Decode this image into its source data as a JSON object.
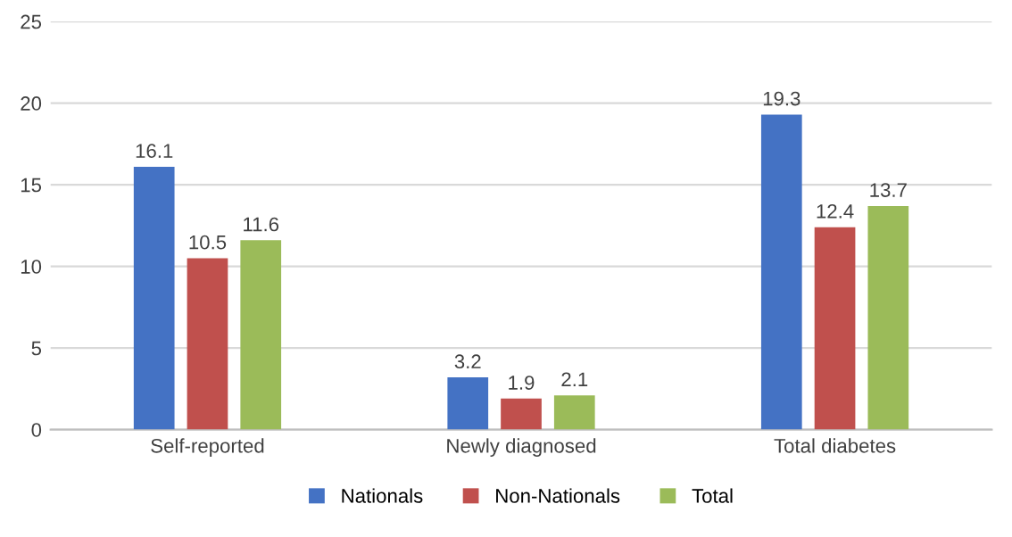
{
  "chart_data": {
    "type": "bar",
    "categories": [
      "Self-reported",
      "Newly diagnosed",
      "Total diabetes"
    ],
    "series": [
      {
        "name": "Nationals",
        "color": "#4472c4",
        "values": [
          16.1,
          3.2,
          19.3
        ]
      },
      {
        "name": "Non-Nationals",
        "color": "#c0504d",
        "values": [
          10.5,
          1.9,
          12.4
        ]
      },
      {
        "name": "Total",
        "color": "#9bbb59",
        "values": [
          11.6,
          2.1,
          13.7
        ]
      }
    ],
    "ylim": [
      0,
      25
    ],
    "yticks": [
      0,
      5,
      10,
      15,
      20,
      25
    ],
    "grid": "y",
    "legend": "bottom",
    "data_labels": true
  }
}
